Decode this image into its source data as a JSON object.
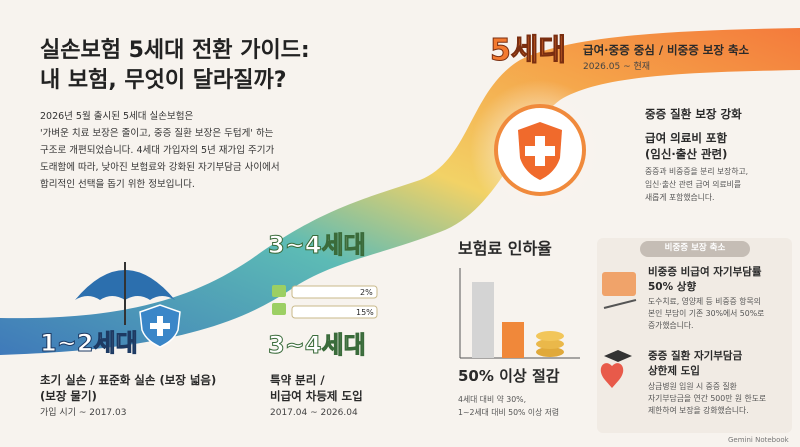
{
  "header": {
    "title_lines": [
      "실손보험 5세대 전환 가이드:",
      "내 보험, 무엇이 달라질까?"
    ],
    "intro_lines": [
      "2026년 5월 출시된 5세대 실손보험은",
      "'가벼운 치료 보장은 줄이고, 중증 질환 보장은 두텁게' 하는",
      "구조로 개편되었습니다. 4세대 가입자의 5년 재가입 주기가",
      "도래함에 따라, 낮아진 보험료와 강화된 자기부담금 사이에서",
      "합리적인 선택을 돕기 위한 정보입니다."
    ]
  },
  "stage1": {
    "label": "1~2세대",
    "desc_lines": [
      "초기 실손 / 표준화 실손 (보장 넓음)",
      "(보장 물기)"
    ],
    "period": "가입 시기 ~ 2017.03"
  },
  "stage34": {
    "label_top": "3~4세대",
    "bar_labels": [
      "2%",
      "15%"
    ],
    "label": "3~4세대",
    "desc_lines": [
      "특약 분리 /",
      "비급여 차등제 도입"
    ],
    "period": "2017.04 ~ 2026.04"
  },
  "stage5": {
    "label": "5세대",
    "subtitle": "급여·중증 중심 / 비중증 보장 축소",
    "period": "2026.05 ~ 현재",
    "feature1": "중증 질환 보장 강화",
    "feature2_lines": [
      "급여 의료비 포함",
      "(임신·출산 관련)"
    ],
    "feature_desc_lines": [
      "중증과 비중증을 분리 보장하고,",
      "임신·출산 관련 급여 의료비를",
      "새롭게 포함했습니다."
    ]
  },
  "premium": {
    "title": "보험료 인하율",
    "headline": "50% 이상 절감",
    "desc_lines": [
      "4세대 대비 약 30%,",
      "1~2세대 대비 50% 이상 저렴"
    ]
  },
  "panel": {
    "header": "비중증 보장 축소",
    "item1_title_lines": [
      "비중증 비급여 자기부담률",
      "50% 상향"
    ],
    "item1_desc_lines": [
      "도수치료, 영양제 등 비중증 항목의",
      "본인 부담이 기존 30%에서 50%로",
      "증가했습니다."
    ],
    "item2_title_lines": [
      "중증 질환 자기부담금",
      "상한제 도입"
    ],
    "item2_desc_lines": [
      "상급병원 입원 시 중증 질환",
      "자기부담금을 연간 500만 원 한도로",
      "제한하여 보장을 강화했습니다."
    ]
  },
  "footer": "Gemini Notebook"
}
